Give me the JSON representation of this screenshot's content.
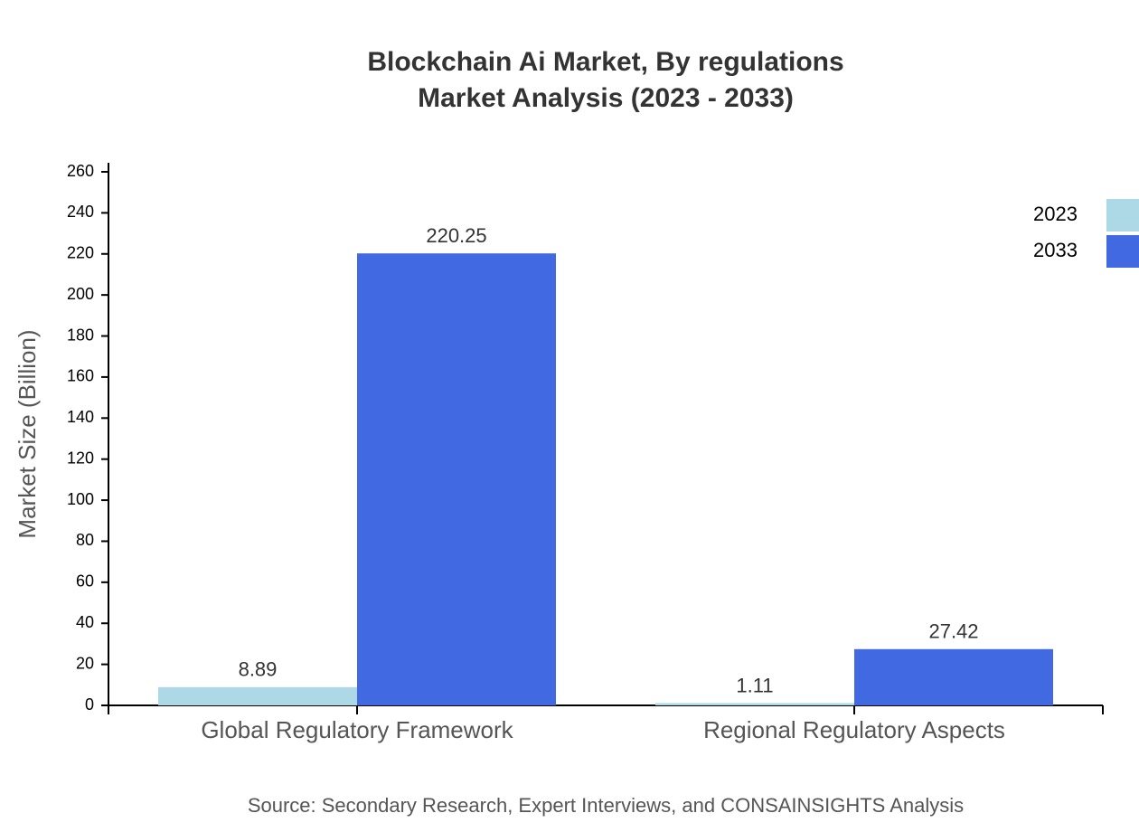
{
  "chart_data": {
    "type": "bar",
    "title": "Blockchain Ai Market, By regulations",
    "subtitle": "Market Analysis (2023 - 2033)",
    "y_label": "Market Size (Billion)",
    "source": "Source: Secondary Research, Expert Interviews, and CONSAINSIGHTS Analysis",
    "categories": [
      "Global Regulatory Framework",
      "Regional Regulatory Aspects"
    ],
    "series": [
      {
        "name": "2023",
        "color": "#add8e6",
        "values": [
          8.89,
          1.11
        ]
      },
      {
        "name": "2033",
        "color": "#4169e1",
        "values": [
          220.25,
          27.42
        ]
      }
    ],
    "ylim": [
      0,
      260
    ],
    "yticks": [
      0,
      20,
      40,
      60,
      80,
      100,
      120,
      140,
      160,
      180,
      200,
      220,
      240,
      260
    ],
    "grid": false,
    "legend": "top-right"
  }
}
